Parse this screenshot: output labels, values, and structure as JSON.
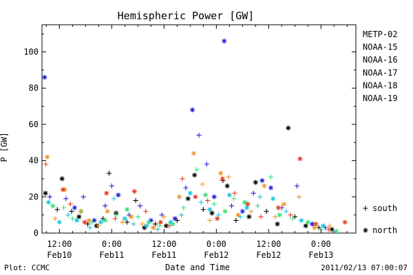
{
  "chart_data": {
    "type": "scatter",
    "title": "Hemispheric Power [GW]",
    "xlabel": "Date and Time",
    "ylabel": "P [GW]",
    "x_unit": "hours from 2011-02-10 00:00 UT",
    "xlim": [
      8,
      80
    ],
    "ylim": [
      0,
      115
    ],
    "y_ticks": [
      0,
      20,
      40,
      60,
      80,
      100
    ],
    "x_ticks": [
      {
        "x": 12,
        "line1": "12:00",
        "line2": "Feb10"
      },
      {
        "x": 24,
        "line1": "0:00",
        "line2": "Feb11"
      },
      {
        "x": 36,
        "line1": "12:00",
        "line2": "Feb11"
      },
      {
        "x": 48,
        "line1": "0:00",
        "line2": "Feb12"
      },
      {
        "x": 60,
        "line1": "12:00",
        "line2": "Feb12"
      },
      {
        "x": 72,
        "line1": "0:00",
        "line2": "Feb13"
      }
    ],
    "grid": false,
    "legend_position": "right",
    "marker_legend": [
      {
        "symbol": "+",
        "label": "south"
      },
      {
        "symbol": "*",
        "label": "north"
      }
    ],
    "series": [
      {
        "name": "METP-02",
        "color": "#000000",
        "points": [
          {
            "x": 8.8,
            "y": 22,
            "m": "north"
          },
          {
            "x": 11.5,
            "y": 13,
            "m": "south"
          },
          {
            "x": 12.6,
            "y": 30,
            "m": "north"
          },
          {
            "x": 14.8,
            "y": 12,
            "m": "south"
          },
          {
            "x": 16.5,
            "y": 9,
            "m": "north"
          },
          {
            "x": 18.5,
            "y": 5,
            "m": "south"
          },
          {
            "x": 20.5,
            "y": 4,
            "m": "north"
          },
          {
            "x": 22.0,
            "y": 8,
            "m": "south"
          },
          {
            "x": 23.4,
            "y": 33,
            "m": "south"
          },
          {
            "x": 25.0,
            "y": 11,
            "m": "north"
          },
          {
            "x": 27.5,
            "y": 6,
            "m": "south"
          },
          {
            "x": 29.5,
            "y": 18,
            "m": "south"
          },
          {
            "x": 31.5,
            "y": 3,
            "m": "north"
          },
          {
            "x": 34.0,
            "y": 5,
            "m": "south"
          },
          {
            "x": 36.5,
            "y": 4,
            "m": "north"
          },
          {
            "x": 39.0,
            "y": 7,
            "m": "south"
          },
          {
            "x": 41.5,
            "y": 19,
            "m": "north"
          },
          {
            "x": 43.0,
            "y": 32,
            "m": "north"
          },
          {
            "x": 45.0,
            "y": 13,
            "m": "south"
          },
          {
            "x": 47.0,
            "y": 11,
            "m": "north"
          },
          {
            "x": 49.5,
            "y": 29,
            "m": "south"
          },
          {
            "x": 50.5,
            "y": 26,
            "m": "north"
          },
          {
            "x": 52.5,
            "y": 7,
            "m": "south"
          },
          {
            "x": 55.5,
            "y": 9,
            "m": "north"
          },
          {
            "x": 57.0,
            "y": 28,
            "m": "north"
          },
          {
            "x": 59.5,
            "y": 12,
            "m": "south"
          },
          {
            "x": 62.0,
            "y": 5,
            "m": "north"
          },
          {
            "x": 64.5,
            "y": 58,
            "m": "north"
          },
          {
            "x": 66.0,
            "y": 9,
            "m": "south"
          },
          {
            "x": 68.5,
            "y": 4,
            "m": "north"
          },
          {
            "x": 71.5,
            "y": 3,
            "m": "south"
          },
          {
            "x": 74.5,
            "y": 2,
            "m": "north"
          }
        ]
      },
      {
        "name": "NOAA-15",
        "color": "#1f1fd6",
        "points": [
          {
            "x": 8.6,
            "y": 86,
            "m": "north"
          },
          {
            "x": 9.8,
            "y": 20,
            "m": "south"
          },
          {
            "x": 13.5,
            "y": 19,
            "m": "south"
          },
          {
            "x": 15.5,
            "y": 14,
            "m": "north"
          },
          {
            "x": 17.5,
            "y": 20,
            "m": "south"
          },
          {
            "x": 20.0,
            "y": 7,
            "m": "north"
          },
          {
            "x": 22.5,
            "y": 15,
            "m": "south"
          },
          {
            "x": 24.0,
            "y": 26,
            "m": "south"
          },
          {
            "x": 25.5,
            "y": 21,
            "m": "north"
          },
          {
            "x": 28.0,
            "y": 10,
            "m": "south"
          },
          {
            "x": 30.5,
            "y": 15,
            "m": "south"
          },
          {
            "x": 33.0,
            "y": 7,
            "m": "north"
          },
          {
            "x": 35.5,
            "y": 10,
            "m": "south"
          },
          {
            "x": 38.5,
            "y": 8,
            "m": "north"
          },
          {
            "x": 41.0,
            "y": 25,
            "m": "south"
          },
          {
            "x": 42.5,
            "y": 68,
            "m": "north"
          },
          {
            "x": 44.0,
            "y": 54,
            "m": "south"
          },
          {
            "x": 45.8,
            "y": 38,
            "m": "south"
          },
          {
            "x": 47.5,
            "y": 20,
            "m": "north"
          },
          {
            "x": 49.8,
            "y": 106,
            "m": "north"
          },
          {
            "x": 51.5,
            "y": 15,
            "m": "south"
          },
          {
            "x": 54.0,
            "y": 12,
            "m": "north"
          },
          {
            "x": 56.5,
            "y": 22,
            "m": "south"
          },
          {
            "x": 58.5,
            "y": 29,
            "m": "north"
          },
          {
            "x": 60.5,
            "y": 25,
            "m": "north"
          },
          {
            "x": 63.0,
            "y": 14,
            "m": "south"
          },
          {
            "x": 66.5,
            "y": 26,
            "m": "south"
          },
          {
            "x": 70.0,
            "y": 5,
            "m": "north"
          },
          {
            "x": 73.0,
            "y": 3,
            "m": "south"
          }
        ]
      },
      {
        "name": "NOAA-16",
        "color": "#19c4dc",
        "points": [
          {
            "x": 9.5,
            "y": 17,
            "m": "north"
          },
          {
            "x": 12.0,
            "y": 6,
            "m": "north"
          },
          {
            "x": 14.0,
            "y": 10,
            "m": "south"
          },
          {
            "x": 16.0,
            "y": 7,
            "m": "north"
          },
          {
            "x": 19.0,
            "y": 3,
            "m": "south"
          },
          {
            "x": 21.5,
            "y": 6,
            "m": "north"
          },
          {
            "x": 24.5,
            "y": 19,
            "m": "south"
          },
          {
            "x": 27.0,
            "y": 8,
            "m": "north"
          },
          {
            "x": 29.0,
            "y": 5,
            "m": "south"
          },
          {
            "x": 32.0,
            "y": 4,
            "m": "north"
          },
          {
            "x": 34.5,
            "y": 2,
            "m": "south"
          },
          {
            "x": 37.5,
            "y": 6,
            "m": "north"
          },
          {
            "x": 40.0,
            "y": 10,
            "m": "south"
          },
          {
            "x": 42.0,
            "y": 22,
            "m": "north"
          },
          {
            "x": 44.5,
            "y": 17,
            "m": "south"
          },
          {
            "x": 46.5,
            "y": 13,
            "m": "north"
          },
          {
            "x": 48.5,
            "y": 10,
            "m": "south"
          },
          {
            "x": 51.0,
            "y": 21,
            "m": "north"
          },
          {
            "x": 53.5,
            "y": 9,
            "m": "south"
          },
          {
            "x": 55.0,
            "y": 14,
            "m": "north"
          },
          {
            "x": 58.0,
            "y": 20,
            "m": "south"
          },
          {
            "x": 61.0,
            "y": 19,
            "m": "north"
          },
          {
            "x": 64.0,
            "y": 12,
            "m": "south"
          },
          {
            "x": 67.5,
            "y": 7,
            "m": "north"
          },
          {
            "x": 72.5,
            "y": 4,
            "m": "north"
          }
        ]
      },
      {
        "name": "NOAA-17",
        "color": "#33e07a",
        "points": [
          {
            "x": 10.5,
            "y": 15,
            "m": "north"
          },
          {
            "x": 13.0,
            "y": 14,
            "m": "south"
          },
          {
            "x": 15.0,
            "y": 8,
            "m": "south"
          },
          {
            "x": 17.0,
            "y": 12,
            "m": "north"
          },
          {
            "x": 19.5,
            "y": 6,
            "m": "south"
          },
          {
            "x": 22.5,
            "y": 7,
            "m": "north"
          },
          {
            "x": 25.0,
            "y": 10,
            "m": "south"
          },
          {
            "x": 27.5,
            "y": 13,
            "m": "north"
          },
          {
            "x": 30.0,
            "y": 9,
            "m": "south"
          },
          {
            "x": 32.5,
            "y": 6,
            "m": "north"
          },
          {
            "x": 35.0,
            "y": 4,
            "m": "south"
          },
          {
            "x": 38.0,
            "y": 5,
            "m": "north"
          },
          {
            "x": 40.5,
            "y": 14,
            "m": "south"
          },
          {
            "x": 43.5,
            "y": 35,
            "m": "south"
          },
          {
            "x": 45.5,
            "y": 21,
            "m": "north"
          },
          {
            "x": 47.5,
            "y": 16,
            "m": "south"
          },
          {
            "x": 50.0,
            "y": 12,
            "m": "north"
          },
          {
            "x": 52.0,
            "y": 19,
            "m": "south"
          },
          {
            "x": 54.5,
            "y": 17,
            "m": "north"
          },
          {
            "x": 57.5,
            "y": 15,
            "m": "south"
          },
          {
            "x": 60.5,
            "y": 31,
            "m": "south"
          },
          {
            "x": 62.5,
            "y": 10,
            "m": "north"
          },
          {
            "x": 65.5,
            "y": 8,
            "m": "south"
          },
          {
            "x": 69.0,
            "y": 6,
            "m": "north"
          },
          {
            "x": 72.0,
            "y": 2,
            "m": "south"
          },
          {
            "x": 75.5,
            "y": 1,
            "m": "north"
          }
        ]
      },
      {
        "name": "NOAA-18",
        "color": "#f0962a",
        "points": [
          {
            "x": 9.2,
            "y": 42,
            "m": "north"
          },
          {
            "x": 11.0,
            "y": 8,
            "m": "south"
          },
          {
            "x": 13.2,
            "y": 24,
            "m": "north"
          },
          {
            "x": 16.8,
            "y": 12,
            "m": "south"
          },
          {
            "x": 18.8,
            "y": 7,
            "m": "north"
          },
          {
            "x": 21.0,
            "y": 4,
            "m": "south"
          },
          {
            "x": 23.0,
            "y": 12,
            "m": "north"
          },
          {
            "x": 26.5,
            "y": 6,
            "m": "south"
          },
          {
            "x": 28.5,
            "y": 9,
            "m": "north"
          },
          {
            "x": 31.0,
            "y": 5,
            "m": "south"
          },
          {
            "x": 33.5,
            "y": 3,
            "m": "north"
          },
          {
            "x": 36.0,
            "y": 9,
            "m": "south"
          },
          {
            "x": 39.5,
            "y": 20,
            "m": "north"
          },
          {
            "x": 42.8,
            "y": 44,
            "m": "north"
          },
          {
            "x": 44.8,
            "y": 27,
            "m": "south"
          },
          {
            "x": 46.5,
            "y": 7,
            "m": "south"
          },
          {
            "x": 49.0,
            "y": 33,
            "m": "north"
          },
          {
            "x": 50.8,
            "y": 31,
            "m": "south"
          },
          {
            "x": 53.0,
            "y": 10,
            "m": "north"
          },
          {
            "x": 56.0,
            "y": 12,
            "m": "south"
          },
          {
            "x": 59.0,
            "y": 26,
            "m": "north"
          },
          {
            "x": 61.5,
            "y": 9,
            "m": "south"
          },
          {
            "x": 63.5,
            "y": 16,
            "m": "north"
          },
          {
            "x": 67.0,
            "y": 20,
            "m": "south"
          },
          {
            "x": 70.5,
            "y": 3,
            "m": "north"
          },
          {
            "x": 74.0,
            "y": 4,
            "m": "south"
          }
        ]
      },
      {
        "name": "NOAA-19",
        "color": "#e23c1c",
        "points": [
          {
            "x": 8.9,
            "y": 38,
            "m": "south"
          },
          {
            "x": 12.8,
            "y": 24,
            "m": "north"
          },
          {
            "x": 14.5,
            "y": 16,
            "m": "south"
          },
          {
            "x": 17.8,
            "y": 6,
            "m": "north"
          },
          {
            "x": 22.8,
            "y": 22,
            "m": "north"
          },
          {
            "x": 24.8,
            "y": 8,
            "m": "south"
          },
          {
            "x": 29.2,
            "y": 23,
            "m": "north"
          },
          {
            "x": 31.8,
            "y": 12,
            "m": "south"
          },
          {
            "x": 35.2,
            "y": 6,
            "m": "north"
          },
          {
            "x": 37.2,
            "y": 4,
            "m": "south"
          },
          {
            "x": 40.2,
            "y": 30,
            "m": "south"
          },
          {
            "x": 43.2,
            "y": 20,
            "m": "north"
          },
          {
            "x": 46.0,
            "y": 18,
            "m": "south"
          },
          {
            "x": 48.2,
            "y": 8,
            "m": "north"
          },
          {
            "x": 49.4,
            "y": 30,
            "m": "north"
          },
          {
            "x": 52.2,
            "y": 22,
            "m": "south"
          },
          {
            "x": 55.2,
            "y": 16,
            "m": "north"
          },
          {
            "x": 58.2,
            "y": 9,
            "m": "south"
          },
          {
            "x": 62.2,
            "y": 14,
            "m": "north"
          },
          {
            "x": 65.0,
            "y": 10,
            "m": "south"
          },
          {
            "x": 67.2,
            "y": 41,
            "m": "north"
          },
          {
            "x": 70.8,
            "y": 5,
            "m": "north"
          },
          {
            "x": 73.8,
            "y": 2,
            "m": "south"
          },
          {
            "x": 77.5,
            "y": 6,
            "m": "north"
          }
        ]
      }
    ]
  },
  "footer": {
    "left": "Plot: CCMC",
    "right": "2011/02/13 07:00:07"
  }
}
